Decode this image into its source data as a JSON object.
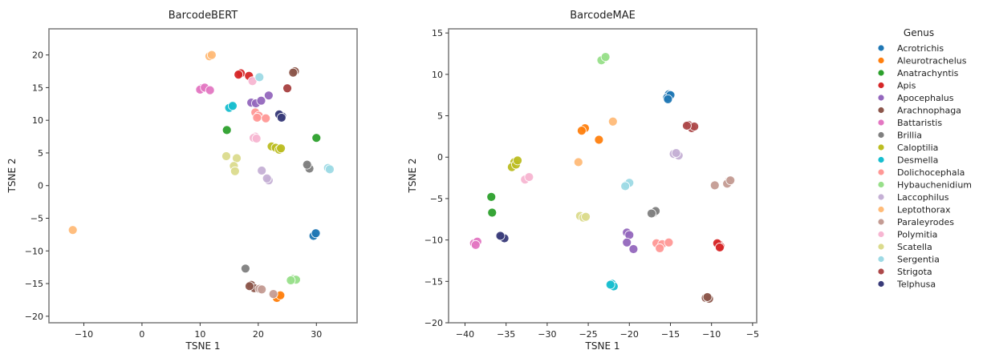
{
  "chart_data": [
    {
      "type": "scatter",
      "title": "BarcodeBERT",
      "xlabel": "TSNE 1",
      "ylabel": "TSNE 2",
      "xlim": [
        -16,
        37
      ],
      "ylim": [
        -21,
        24
      ],
      "xticks": [
        -10,
        0,
        10,
        20,
        30
      ],
      "yticks": [
        -20,
        -15,
        -10,
        -5,
        0,
        5,
        10,
        15,
        20
      ],
      "xtick_labels": [
        "−10",
        "0",
        "10",
        "20",
        "30"
      ],
      "ytick_labels": [
        "−20",
        "−15",
        "−10",
        "−5",
        "0",
        "5",
        "10",
        "15",
        "20"
      ],
      "series": [
        {
          "name": "Acrotrichis",
          "points": [
            [
              29.7,
              -7.4
            ],
            [
              29.5,
              -7.7
            ],
            [
              29.9,
              -7.3
            ]
          ]
        },
        {
          "name": "Aleurotrachelus",
          "points": [
            [
              23.5,
              -17.0
            ],
            [
              23.2,
              -17.2
            ],
            [
              23.8,
              -16.8
            ]
          ]
        },
        {
          "name": "Anatrachyntis",
          "points": [
            [
              14.6,
              8.5
            ],
            [
              30.0,
              7.3
            ]
          ]
        },
        {
          "name": "Apis",
          "points": [
            [
              17.0,
              17.2
            ],
            [
              16.6,
              17.0
            ],
            [
              18.4,
              16.8
            ]
          ]
        },
        {
          "name": "Apocephalus",
          "points": [
            [
              18.8,
              12.7
            ],
            [
              19.6,
              12.6
            ],
            [
              20.5,
              13.0
            ],
            [
              21.8,
              13.8
            ]
          ]
        },
        {
          "name": "Arachnophaga",
          "points": [
            [
              26.3,
              17.5
            ],
            [
              26.0,
              17.3
            ],
            [
              25.0,
              14.9
            ],
            [
              18.8,
              -15.2
            ],
            [
              19.3,
              -15.7
            ],
            [
              18.5,
              -15.4
            ]
          ]
        },
        {
          "name": "Battaristis",
          "points": [
            [
              10.3,
              14.9
            ],
            [
              10.0,
              14.7
            ],
            [
              10.8,
              15.0
            ],
            [
              11.7,
              14.6
            ]
          ]
        },
        {
          "name": "Brillia",
          "points": [
            [
              28.6,
              3.0
            ],
            [
              28.8,
              2.6
            ],
            [
              28.4,
              3.2
            ],
            [
              17.8,
              -12.7
            ]
          ]
        },
        {
          "name": "Caloptilia",
          "points": [
            [
              22.3,
              6.0
            ],
            [
              23.0,
              5.8
            ],
            [
              23.6,
              5.5
            ],
            [
              23.9,
              5.7
            ]
          ]
        },
        {
          "name": "Desmella",
          "points": [
            [
              15.3,
              12.1
            ],
            [
              15.0,
              11.9
            ],
            [
              15.6,
              12.2
            ]
          ]
        },
        {
          "name": "Dolichocephala",
          "points": [
            [
              19.5,
              11.2
            ],
            [
              20.1,
              10.7
            ],
            [
              19.8,
              10.4
            ],
            [
              21.3,
              10.3
            ]
          ]
        },
        {
          "name": "Hybauchenidium",
          "points": [
            [
              26.0,
              -14.3
            ],
            [
              26.5,
              -14.4
            ],
            [
              25.6,
              -14.5
            ]
          ]
        },
        {
          "name": "Laccophilus",
          "points": [
            [
              20.6,
              2.3
            ],
            [
              21.8,
              0.8
            ],
            [
              21.5,
              1.1
            ]
          ]
        },
        {
          "name": "Leptothorax",
          "points": [
            [
              11.6,
              19.8
            ],
            [
              12.0,
              20.0
            ],
            [
              -11.9,
              -6.8
            ]
          ]
        },
        {
          "name": "Paraleyrodes",
          "points": [
            [
              20.2,
              -15.8
            ],
            [
              20.6,
              -15.9
            ],
            [
              22.6,
              -16.6
            ]
          ]
        },
        {
          "name": "Polymitia",
          "points": [
            [
              19.0,
              16.0
            ],
            [
              19.5,
              7.5
            ],
            [
              19.2,
              7.3
            ],
            [
              19.7,
              7.2
            ]
          ]
        },
        {
          "name": "Scatella",
          "points": [
            [
              14.5,
              4.5
            ],
            [
              16.3,
              4.2
            ],
            [
              15.8,
              3.0
            ],
            [
              16.0,
              2.2
            ]
          ]
        },
        {
          "name": "Sergentia",
          "points": [
            [
              20.2,
              16.6
            ],
            [
              32.0,
              2.7
            ],
            [
              32.3,
              2.5
            ]
          ]
        },
        {
          "name": "Strigota",
          "points": [
            [
              25.0,
              14.9
            ]
          ]
        },
        {
          "name": "Telphusa",
          "points": [
            [
              23.8,
              10.8
            ],
            [
              24.1,
              10.6
            ],
            [
              23.6,
              10.9
            ],
            [
              24.0,
              10.4
            ]
          ]
        }
      ]
    },
    {
      "type": "scatter",
      "title": "BarcodeMAE",
      "xlabel": "TSNE 1",
      "ylabel": "TSNE 2",
      "xlim": [
        -42,
        -4.5
      ],
      "ylim": [
        -20,
        15.5
      ],
      "xticks": [
        -40,
        -35,
        -30,
        -25,
        -20,
        -15,
        -10,
        -5
      ],
      "yticks": [
        -20,
        -15,
        -10,
        -5,
        0,
        5,
        10,
        15
      ],
      "xtick_labels": [
        "−40",
        "−35",
        "−30",
        "−25",
        "−20",
        "−15",
        "−10",
        "−5"
      ],
      "ytick_labels": [
        "−20",
        "−15",
        "−10",
        "−5",
        "0",
        "5",
        "10",
        "15"
      ],
      "series": [
        {
          "name": "Acrotrichis",
          "points": [
            [
              -15.2,
              7.6
            ],
            [
              -15.4,
              7.2
            ],
            [
              -15.0,
              7.5
            ],
            [
              -15.3,
              7.0
            ]
          ]
        },
        {
          "name": "Aleurotrachelus",
          "points": [
            [
              -25.4,
              3.5
            ],
            [
              -25.8,
              3.2
            ],
            [
              -23.7,
              2.1
            ]
          ]
        },
        {
          "name": "Anatrachyntis",
          "points": [
            [
              -36.8,
              -4.8
            ],
            [
              -36.7,
              -6.7
            ]
          ]
        },
        {
          "name": "Apis",
          "points": [
            [
              -9.1,
              -10.5
            ],
            [
              -8.9,
              -10.8
            ],
            [
              -9.3,
              -10.4
            ],
            [
              -9.0,
              -10.9
            ]
          ]
        },
        {
          "name": "Apocephalus",
          "points": [
            [
              -20.3,
              -9.1
            ],
            [
              -20.0,
              -9.4
            ],
            [
              -20.3,
              -10.3
            ],
            [
              -19.5,
              -11.1
            ]
          ]
        },
        {
          "name": "Arachnophaga",
          "points": [
            [
              -10.7,
              -17.0
            ],
            [
              -10.3,
              -17.1
            ],
            [
              -10.5,
              -16.9
            ]
          ]
        },
        {
          "name": "Battaristis",
          "points": [
            [
              -38.9,
              -10.4
            ],
            [
              -38.5,
              -10.2
            ],
            [
              -38.7,
              -10.6
            ]
          ]
        },
        {
          "name": "Brillia",
          "points": [
            [
              -17.0,
              -6.7
            ],
            [
              -16.8,
              -6.5
            ],
            [
              -17.3,
              -6.8
            ]
          ]
        },
        {
          "name": "Caloptilia",
          "points": [
            [
              -34.0,
              -0.6
            ],
            [
              -34.3,
              -1.2
            ],
            [
              -33.8,
              -0.9
            ],
            [
              -33.6,
              -0.4
            ]
          ]
        },
        {
          "name": "Desmella",
          "points": [
            [
              -22.1,
              -15.3
            ],
            [
              -21.9,
              -15.6
            ],
            [
              -22.3,
              -15.4
            ]
          ]
        },
        {
          "name": "Dolichocephala",
          "points": [
            [
              -16.7,
              -10.4
            ],
            [
              -16.0,
              -10.5
            ],
            [
              -15.2,
              -10.3
            ],
            [
              -16.3,
              -11.0
            ]
          ]
        },
        {
          "name": "Hybauchenidium",
          "points": [
            [
              -23.1,
              11.9
            ],
            [
              -23.4,
              11.7
            ],
            [
              -22.9,
              12.1
            ]
          ]
        },
        {
          "name": "Laccophilus",
          "points": [
            [
              -14.6,
              0.4
            ],
            [
              -14.0,
              0.2
            ],
            [
              -14.3,
              0.5
            ]
          ]
        },
        {
          "name": "Leptothorax",
          "points": [
            [
              -22.0,
              4.3
            ],
            [
              -26.2,
              -0.6
            ]
          ]
        },
        {
          "name": "Paraleyrodes",
          "points": [
            [
              -9.6,
              -3.4
            ],
            [
              -7.9,
              -2.9
            ],
            [
              -8.1,
              -3.2
            ],
            [
              -7.7,
              -2.8
            ]
          ]
        },
        {
          "name": "Polymitia",
          "points": [
            [
              -32.4,
              -2.5
            ],
            [
              -32.7,
              -2.7
            ],
            [
              -32.2,
              -2.4
            ]
          ]
        },
        {
          "name": "Scatella",
          "points": [
            [
              -26.0,
              -7.1
            ],
            [
              -25.6,
              -7.3
            ],
            [
              -25.3,
              -7.2
            ]
          ]
        },
        {
          "name": "Sergentia",
          "points": [
            [
              -20.3,
              -3.3
            ],
            [
              -20.0,
              -3.1
            ],
            [
              -20.5,
              -3.5
            ]
          ]
        },
        {
          "name": "Strigota",
          "points": [
            [
              -12.8,
              3.9
            ],
            [
              -12.4,
              3.5
            ],
            [
              -12.1,
              3.7
            ],
            [
              -13.0,
              3.8
            ]
          ]
        },
        {
          "name": "Telphusa",
          "points": [
            [
              -35.5,
              -9.6
            ],
            [
              -35.2,
              -9.8
            ],
            [
              -35.7,
              -9.5
            ]
          ]
        }
      ]
    }
  ],
  "legend": {
    "title": "Genus",
    "items": [
      {
        "name": "Acrotrichis",
        "color": "#1f77b4"
      },
      {
        "name": "Aleurotrachelus",
        "color": "#ff7f0e"
      },
      {
        "name": "Anatrachyntis",
        "color": "#2ca02c"
      },
      {
        "name": "Apis",
        "color": "#d62728"
      },
      {
        "name": "Apocephalus",
        "color": "#9467bd"
      },
      {
        "name": "Arachnophaga",
        "color": "#8c564b"
      },
      {
        "name": "Battaristis",
        "color": "#e377c2"
      },
      {
        "name": "Brillia",
        "color": "#7f7f7f"
      },
      {
        "name": "Caloptilia",
        "color": "#bcbd22"
      },
      {
        "name": "Desmella",
        "color": "#17becf"
      },
      {
        "name": "Dolichocephala",
        "color": "#ff9896"
      },
      {
        "name": "Hybauchenidium",
        "color": "#98df8a"
      },
      {
        "name": "Laccophilus",
        "color": "#c5b0d5"
      },
      {
        "name": "Leptothorax",
        "color": "#ffbb78"
      },
      {
        "name": "Paraleyrodes",
        "color": "#c49c94"
      },
      {
        "name": "Polymitia",
        "color": "#f7b6d2"
      },
      {
        "name": "Scatella",
        "color": "#dbdb8d"
      },
      {
        "name": "Sergentia",
        "color": "#9edae5"
      },
      {
        "name": "Strigota",
        "color": "#ad494a"
      },
      {
        "name": "Telphusa",
        "color": "#393b79"
      }
    ]
  }
}
